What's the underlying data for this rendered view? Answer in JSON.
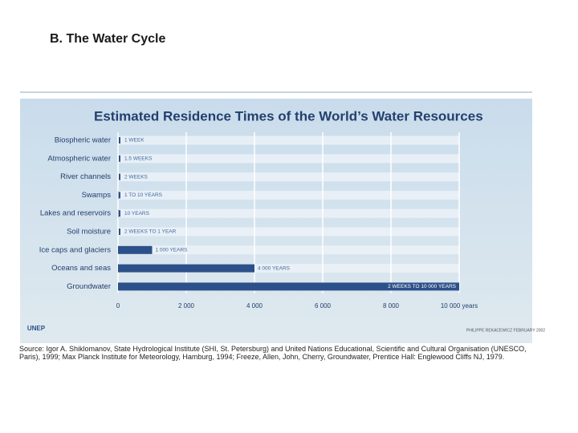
{
  "slide_title": "B. The Water Cycle",
  "chart_data": {
    "type": "hbar",
    "title": "Estimated Residence Times of the World’s Water Resources",
    "categories": [
      "Biospheric water",
      "Atmospheric water",
      "River channels",
      "Swamps",
      "Lakes and reservoirs",
      "Soil moisture",
      "Ice caps and glaciers",
      "Oceans and seas",
      "Groundwater"
    ],
    "values": [
      0.019,
      0.029,
      0.038,
      10,
      10,
      1,
      1000,
      4000,
      10000
    ],
    "value_labels": [
      "1 WEEK",
      "1.5 WEEKS",
      "2 WEEKS",
      "1 TO 10 YEARS",
      "10 YEARS",
      "2 WEEKS TO 1 YEAR",
      "1 000 YEARS",
      "4 000 YEARS",
      "2 WEEKS TO 10 000 YEARS"
    ],
    "color": "#2c5089",
    "xlim": [
      0,
      10000
    ],
    "xticks": [
      0,
      {
        "value": 2000,
        "label": "2 000"
      },
      {
        "value": 4000,
        "label": "4 000"
      },
      {
        "value": 6000,
        "label": "6 000"
      },
      {
        "value": 8000,
        "label": "8 000"
      },
      {
        "value": 10000,
        "label": "10 000 years"
      }
    ],
    "grid": true
  },
  "logo": "UNEP",
  "credit": "PHILIPPE REKACEWICZ FEBRUARY 2002",
  "source": "Source: Igor A. Shiklomanov, State Hydrological Institute (SHI, St. Petersburg) and United Nations Educational, Scientific and Cultural Organisation (UNESCO, Paris), 1999; Max Planck Institute for Meteorology, Hamburg, 1994; Freeze, Allen, John, Cherry, Groundwater, Prentice Hall: Englewood Cliffs NJ, 1979."
}
